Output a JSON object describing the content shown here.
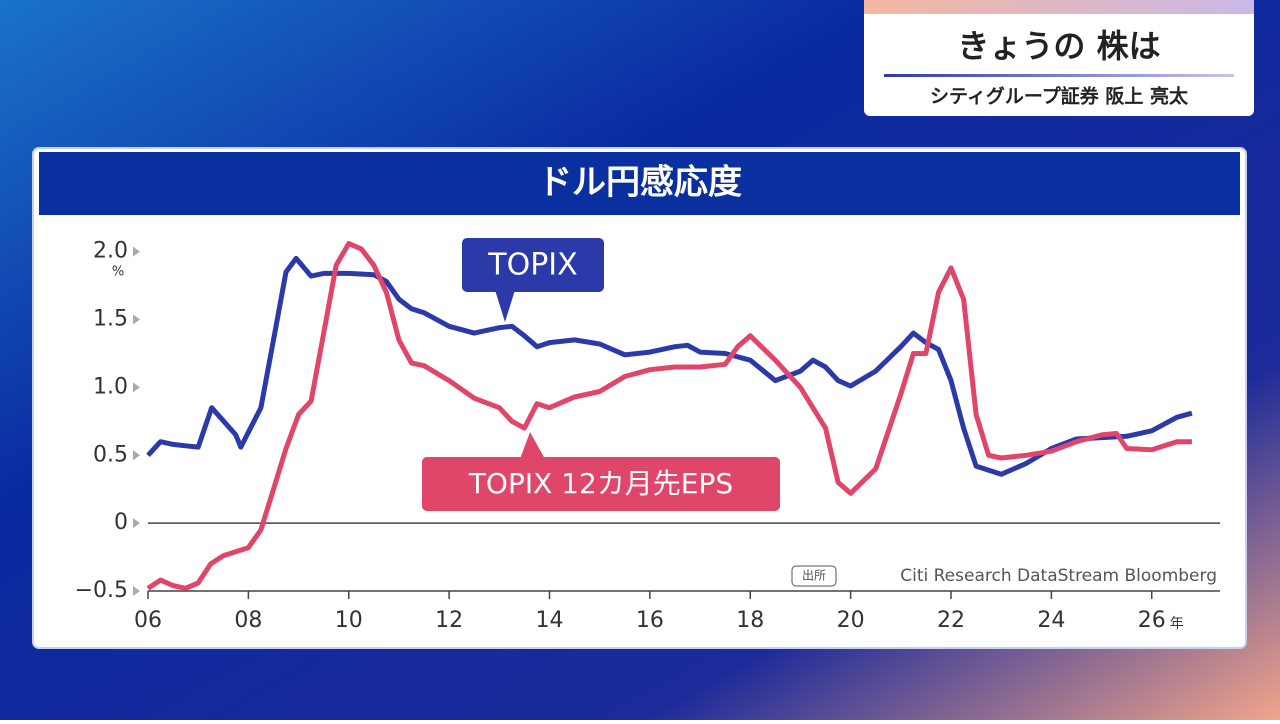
{
  "program": {
    "title": "きょうの 株は",
    "guest": "シティグループ証券 阪上 亮太"
  },
  "chart_data": {
    "type": "line",
    "title": "ドル円感応度",
    "y_unit": "%",
    "x_unit": "年",
    "source_label": "出所",
    "source": "Citi Research DataStream Bloomberg",
    "xlim": [
      2006,
      2027.3
    ],
    "ylim": [
      -0.5,
      2.13
    ],
    "zero_line": true,
    "xticks": [
      {
        "value": 2006,
        "label": "06"
      },
      {
        "value": 2008,
        "label": "08"
      },
      {
        "value": 2010,
        "label": "10"
      },
      {
        "value": 2012,
        "label": "12"
      },
      {
        "value": 2014,
        "label": "14"
      },
      {
        "value": 2016,
        "label": "16"
      },
      {
        "value": 2018,
        "label": "18"
      },
      {
        "value": 2020,
        "label": "20"
      },
      {
        "value": 2022,
        "label": "22"
      },
      {
        "value": 2024,
        "label": "24"
      },
      {
        "value": 2026,
        "label": "26"
      }
    ],
    "yticks": [
      {
        "value": 2,
        "label": "2.0"
      },
      1.5,
      {
        "value": 1,
        "label": "1.0"
      },
      0.5,
      0,
      {
        "value": -0.5,
        "label": "−0.5"
      }
    ],
    "series": [
      {
        "name": "TOPIX",
        "color": "#2b3aa8",
        "x": [
          2006,
          2006.25,
          2006.5,
          2006.75,
          2007,
          2007.27,
          2007.75,
          2007.85,
          2008.25,
          2008.5,
          2008.75,
          2008.95,
          2009.25,
          2009.5,
          2010,
          2010.5,
          2010.75,
          2011,
          2011.25,
          2011.5,
          2012,
          2012.5,
          2013,
          2013.25,
          2013.5,
          2013.75,
          2014,
          2014.5,
          2015,
          2015.5,
          2016,
          2016.5,
          2016.75,
          2017,
          2017.5,
          2018,
          2018.5,
          2019,
          2019.25,
          2019.5,
          2019.75,
          2020,
          2020.5,
          2021,
          2021.25,
          2021.5,
          2021.75,
          2022,
          2022.25,
          2022.5,
          2023,
          2023.5,
          2024,
          2024.5,
          2025,
          2025.5,
          2026,
          2026.5,
          2026.8
        ],
        "values": [
          0.5,
          0.6,
          0.58,
          0.57,
          0.56,
          0.85,
          0.65,
          0.56,
          0.85,
          1.35,
          1.85,
          1.95,
          1.82,
          1.84,
          1.84,
          1.83,
          1.78,
          1.65,
          1.58,
          1.55,
          1.45,
          1.4,
          1.44,
          1.45,
          1.38,
          1.3,
          1.33,
          1.35,
          1.32,
          1.24,
          1.26,
          1.3,
          1.31,
          1.26,
          1.25,
          1.2,
          1.05,
          1.12,
          1.2,
          1.15,
          1.05,
          1.01,
          1.12,
          1.3,
          1.4,
          1.33,
          1.28,
          1.05,
          0.7,
          0.42,
          0.36,
          0.44,
          0.55,
          0.62,
          0.63,
          0.64,
          0.68,
          0.78,
          0.81
        ]
      },
      {
        "name": "TOPIX 12カ月先EPS",
        "color": "#e0466a",
        "x": [
          2006,
          2006.25,
          2006.5,
          2006.75,
          2007,
          2007.25,
          2007.5,
          2008,
          2008.25,
          2008.5,
          2008.75,
          2009,
          2009.25,
          2009.5,
          2009.75,
          2010,
          2010.25,
          2010.5,
          2010.75,
          2011,
          2011.25,
          2011.5,
          2012,
          2012.5,
          2013,
          2013.25,
          2013.5,
          2013.75,
          2014,
          2014.5,
          2015,
          2015.5,
          2016,
          2016.5,
          2017,
          2017.5,
          2017.75,
          2018,
          2018.5,
          2019,
          2019.5,
          2019.75,
          2020,
          2020.5,
          2021,
          2021.25,
          2021.5,
          2021.75,
          2022,
          2022.25,
          2022.5,
          2022.75,
          2023,
          2023.5,
          2024,
          2024.5,
          2025,
          2025.3,
          2025.5,
          2026,
          2026.5,
          2026.8
        ],
        "values": [
          -0.48,
          -0.42,
          -0.46,
          -0.48,
          -0.44,
          -0.3,
          -0.24,
          -0.18,
          -0.05,
          0.25,
          0.55,
          0.8,
          0.9,
          1.4,
          1.9,
          2.06,
          2.02,
          1.9,
          1.7,
          1.35,
          1.18,
          1.16,
          1.05,
          0.92,
          0.85,
          0.75,
          0.7,
          0.88,
          0.85,
          0.93,
          0.97,
          1.08,
          1.13,
          1.15,
          1.15,
          1.17,
          1.3,
          1.38,
          1.2,
          1,
          0.7,
          0.3,
          0.22,
          0.4,
          0.95,
          1.25,
          1.25,
          1.7,
          1.88,
          1.65,
          0.8,
          0.5,
          0.48,
          0.5,
          0.53,
          0.6,
          0.65,
          0.66,
          0.55,
          0.54,
          0.6,
          0.6
        ]
      }
    ]
  }
}
